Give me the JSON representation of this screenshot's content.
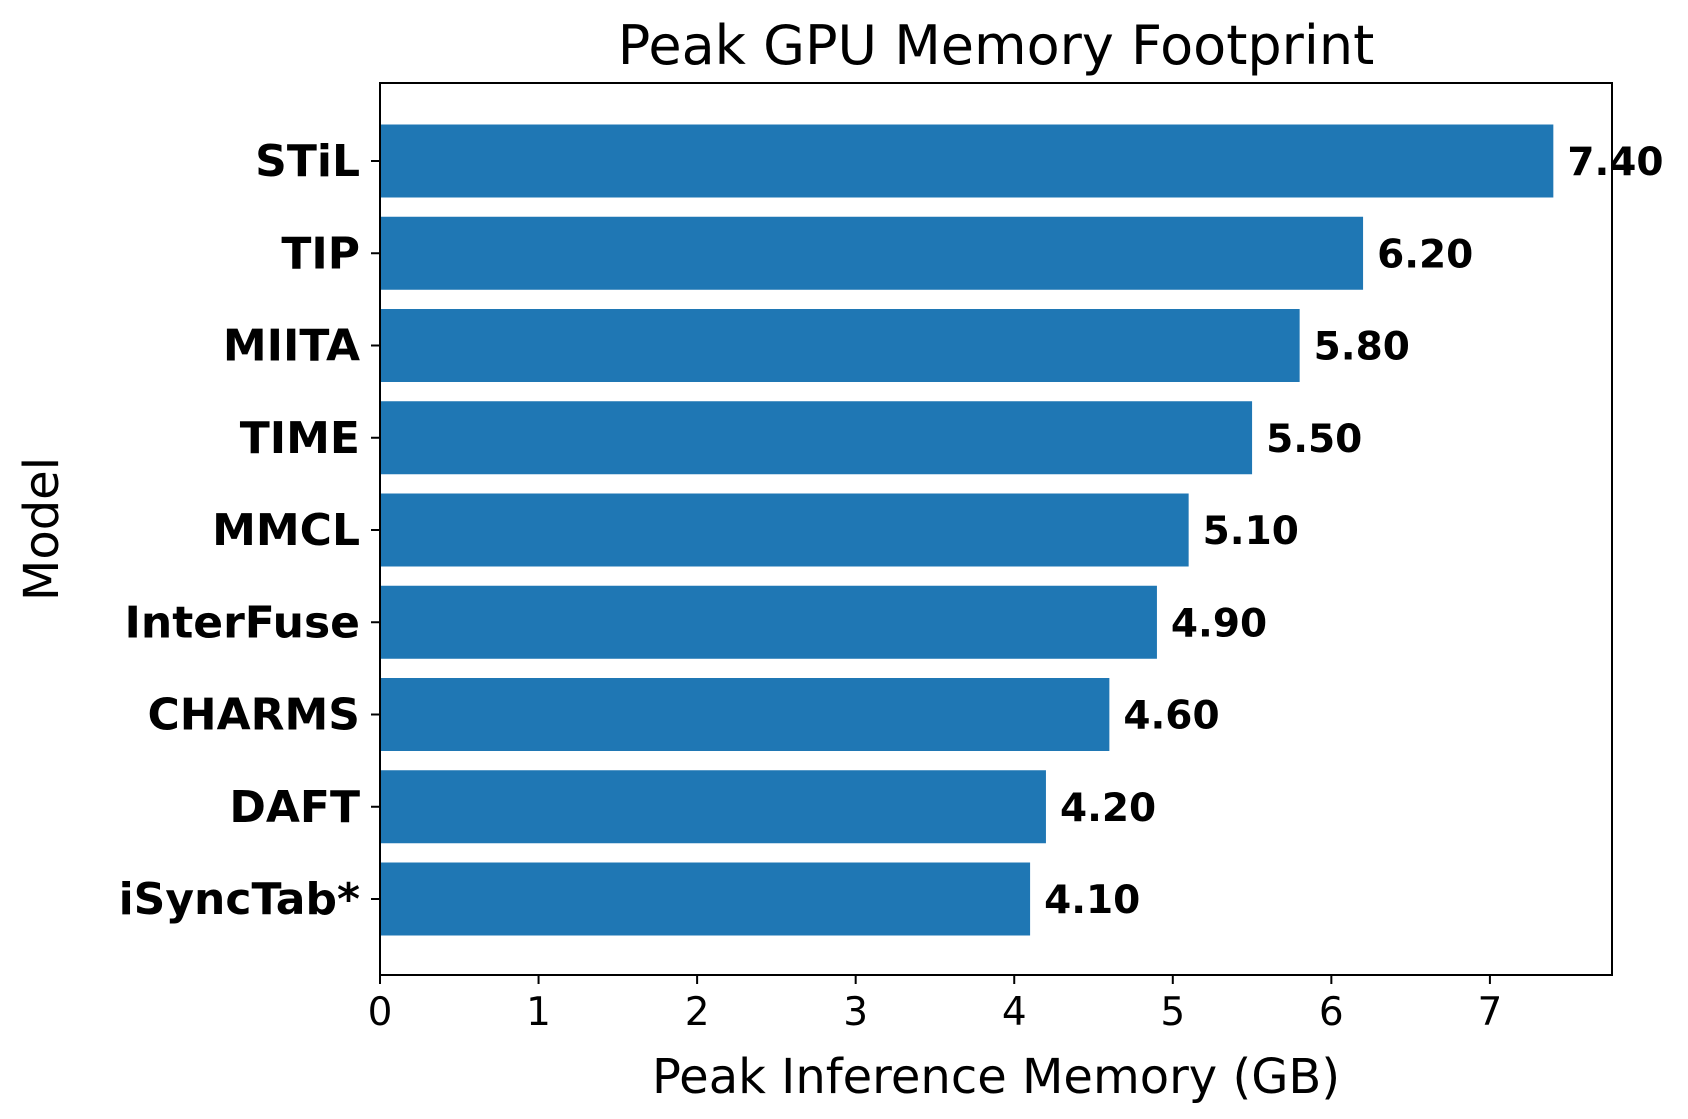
{
  "chart_data": {
    "type": "bar",
    "orientation": "horizontal",
    "title": "Peak GPU Memory Footprint",
    "xlabel": "Peak Inference Memory (GB)",
    "ylabel": "Model",
    "categories": [
      "STiL",
      "TIP",
      "MIITA",
      "TIME",
      "MMCL",
      "InterFuse",
      "CHARMS",
      "DAFT",
      "iSyncTab*"
    ],
    "values": [
      7.4,
      6.2,
      5.8,
      5.5,
      5.1,
      4.9,
      4.6,
      4.2,
      4.1
    ],
    "value_labels": [
      "7.40",
      "6.20",
      "5.80",
      "5.50",
      "5.10",
      "4.90",
      "4.60",
      "4.20",
      "4.10"
    ],
    "xlim": [
      0,
      7.77
    ],
    "xticks": [
      0,
      1,
      2,
      3,
      4,
      5,
      6,
      7
    ],
    "xtick_labels": [
      "0",
      "1",
      "2",
      "3",
      "4",
      "5",
      "6",
      "7"
    ],
    "grid": false,
    "legend": "none",
    "bar_color": "#1f77b4"
  }
}
